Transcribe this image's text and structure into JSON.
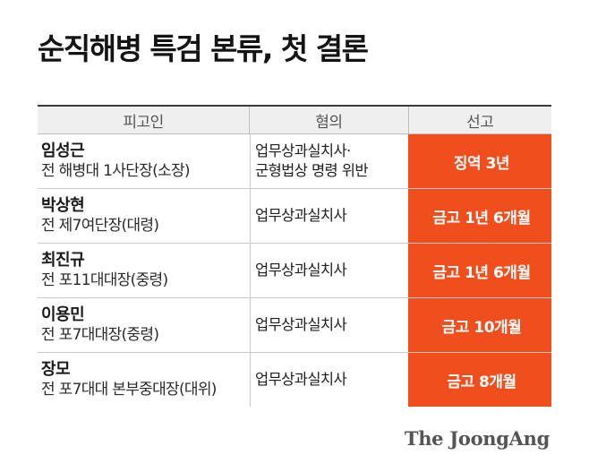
{
  "title": "순직해병 특검 본류, 첫 결론",
  "headers": [
    "피고인",
    "혐의",
    "선고"
  ],
  "rows": [
    {
      "name": "임성근",
      "position": "전 해병대 1사단장(소장)",
      "charge": [
        "업무상과실치사·",
        "군형법상 명령 위반"
      ],
      "sentence": "징역 3년"
    },
    {
      "name": "박상현",
      "position": "전 제7여단장(대령)",
      "charge": [
        "업무상과실치사"
      ],
      "sentence": "금고 1년 6개월"
    },
    {
      "name": "최진규",
      "position": "전 포11대대장(중령)",
      "charge": [
        "업무상과실치사"
      ],
      "sentence": "금고 1년 6개월"
    },
    {
      "name": "이용민",
      "position": "전 포7대대장(중령)",
      "charge": [
        "업무상과실치사"
      ],
      "sentence": "금고 10개월"
    },
    {
      "name": "장모",
      "position": "전 포7대대 본부중대장(대위)",
      "charge": [
        "업무상과실치사"
      ],
      "sentence": "금고 8개월"
    }
  ],
  "logo": "The JoongAng",
  "accent_color": "#f04f1d"
}
